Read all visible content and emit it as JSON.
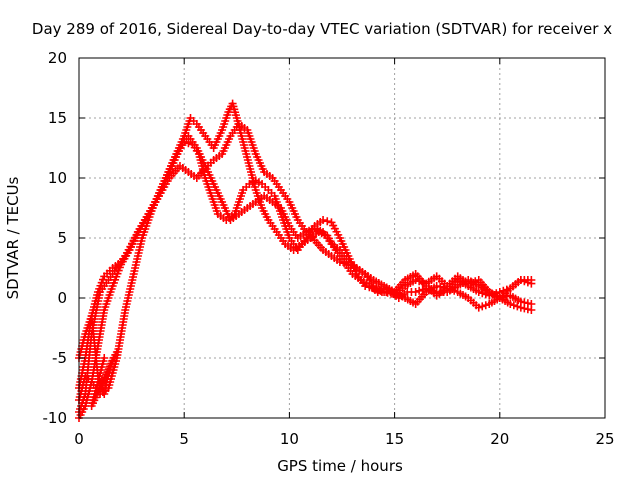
{
  "chart_data": {
    "type": "scatter",
    "title": "Day 289 of 2016, Sidereal Day-to-day VTEC variation (SDTVAR) for receiver x",
    "xlabel": "GPS time / hours",
    "ylabel": "SDTVAR / TECUs",
    "xlim": [
      0,
      25
    ],
    "ylim": [
      -10,
      20
    ],
    "xticks": [
      "0",
      "5",
      "10",
      "15",
      "20",
      "25"
    ],
    "yticks": [
      "-10",
      "-5",
      "0",
      "5",
      "10",
      "15",
      "20"
    ],
    "grid": true,
    "marker": "+",
    "series_color": "#ff0000",
    "series": [
      {
        "x": [
          0.0,
          0.3,
          0.6,
          1.0,
          1.4,
          1.8,
          2.2,
          2.6,
          3.0,
          3.5,
          4.0,
          4.5,
          5.0,
          5.4,
          5.7,
          6.0,
          6.3,
          6.6,
          7.0,
          7.4,
          7.8,
          8.1,
          8.4,
          8.7,
          9.0,
          9.3,
          9.6,
          10.0,
          10.4,
          10.8,
          11.2,
          11.6,
          12.0,
          12.4,
          12.8,
          13.2,
          13.6,
          14.0,
          14.5,
          15.0,
          15.5,
          16.0,
          16.5,
          17.0,
          17.5,
          18.0,
          18.5,
          19.0,
          19.5,
          20.0,
          20.5,
          21.0,
          21.5
        ],
        "y": [
          -9.5,
          -8.0,
          -3.0,
          0.5,
          1.5,
          2.5,
          3.5,
          4.8,
          6.0,
          7.5,
          9.5,
          11.5,
          13.0,
          12.8,
          12.0,
          10.0,
          8.5,
          7.0,
          6.5,
          7.0,
          9.0,
          9.5,
          9.8,
          9.5,
          9.0,
          8.5,
          7.0,
          5.0,
          4.0,
          5.0,
          6.0,
          6.5,
          6.3,
          5.0,
          3.5,
          2.0,
          1.0,
          0.8,
          0.5,
          0.3,
          1.0,
          1.5,
          1.2,
          1.8,
          1.0,
          1.8,
          1.2,
          1.5,
          0.5,
          0.0,
          0.8,
          1.5,
          1.2
        ]
      },
      {
        "x": [
          0.0,
          0.3,
          0.6,
          1.0,
          1.4,
          1.8,
          2.2,
          2.6,
          3.0,
          3.5,
          4.0,
          4.5,
          5.0,
          5.3,
          5.6,
          6.0,
          6.4,
          6.8,
          7.1,
          7.3,
          7.5,
          7.8,
          8.1,
          8.4,
          8.7,
          9.0,
          9.4,
          9.8,
          10.2,
          10.6,
          11.0,
          11.4,
          11.8,
          12.2,
          12.6,
          13.0,
          13.4,
          13.8,
          14.2,
          14.6,
          15.0,
          15.5,
          16.0,
          16.5,
          17.0,
          17.5,
          18.0,
          18.5,
          19.0,
          19.5,
          20.0,
          20.5,
          21.0,
          21.5
        ],
        "y": [
          -8.5,
          -6.5,
          -7.0,
          -8.0,
          -7.5,
          -5.0,
          -1.0,
          2.0,
          5.0,
          7.5,
          9.5,
          11.5,
          13.5,
          15.0,
          14.5,
          13.5,
          12.5,
          14.0,
          15.5,
          16.2,
          15.0,
          13.0,
          11.0,
          9.0,
          7.5,
          6.5,
          5.5,
          4.5,
          4.0,
          4.5,
          5.0,
          5.5,
          5.2,
          4.0,
          3.0,
          2.0,
          1.5,
          1.0,
          0.5,
          0.8,
          0.5,
          1.5,
          2.0,
          1.0,
          0.2,
          0.8,
          1.5,
          1.0,
          0.5,
          0.2,
          0.5,
          0.8,
          1.5,
          1.5
        ]
      },
      {
        "x": [
          0.0,
          0.3,
          0.6,
          0.9,
          1.2,
          1.6,
          2.0,
          2.4,
          2.8,
          3.3,
          3.8,
          4.3,
          4.8,
          5.2,
          5.6,
          6.0,
          6.4,
          6.8,
          7.2,
          7.6,
          8.0,
          8.4,
          8.8,
          9.2,
          9.6,
          10.0,
          10.4,
          10.8,
          11.2,
          11.6,
          12.0,
          12.4,
          12.8,
          13.2,
          13.6,
          14.0,
          14.4,
          14.8,
          15.2,
          15.6,
          16.0,
          16.5,
          17.0,
          17.5,
          18.0,
          18.5,
          19.0,
          19.5,
          20.0,
          20.5,
          21.0,
          21.5
        ],
        "y": [
          -7.5,
          -5.0,
          -1.5,
          0.5,
          1.8,
          2.5,
          3.0,
          4.0,
          5.5,
          7.0,
          8.5,
          10.0,
          11.0,
          10.5,
          10.0,
          10.8,
          11.5,
          12.0,
          13.5,
          14.5,
          14.0,
          12.0,
          10.5,
          10.0,
          9.0,
          8.0,
          6.5,
          5.5,
          4.8,
          4.0,
          3.5,
          3.0,
          2.8,
          2.5,
          2.0,
          1.0,
          0.5,
          0.5,
          0.0,
          0.5,
          0.5,
          0.8,
          0.5,
          0.5,
          1.0,
          1.5,
          1.0,
          0.5,
          0.0,
          -0.5,
          -0.8,
          -1.0
        ]
      },
      {
        "x": [
          0.0,
          0.3,
          0.6,
          0.9,
          1.2,
          1.6,
          2.0,
          2.4,
          2.8,
          3.3,
          3.8,
          4.3,
          4.8,
          5.2,
          5.6,
          6.0,
          6.4,
          6.8,
          7.2,
          7.6,
          8.0,
          8.4,
          8.8,
          9.2,
          9.6,
          10.0,
          10.4,
          10.8,
          11.2,
          11.6,
          12.0,
          12.4,
          12.8,
          13.2,
          13.6,
          14.0,
          14.5,
          15.0,
          15.5,
          16.0,
          16.5,
          17.0,
          17.5,
          18.0,
          18.5,
          19.0,
          19.5,
          20.0,
          20.5,
          21.0,
          21.5
        ],
        "y": [
          -10.0,
          -9.0,
          -7.0,
          -4.0,
          -1.0,
          1.0,
          2.8,
          4.0,
          5.5,
          7.0,
          8.5,
          10.5,
          12.5,
          13.5,
          12.5,
          11.0,
          9.5,
          8.0,
          6.5,
          7.0,
          7.5,
          8.0,
          8.5,
          8.0,
          7.5,
          6.0,
          5.0,
          5.5,
          5.8,
          5.5,
          4.5,
          4.0,
          3.0,
          2.5,
          2.0,
          1.5,
          1.0,
          0.5,
          0.0,
          -0.5,
          0.5,
          1.0,
          0.8,
          0.5,
          0.0,
          -0.8,
          -0.5,
          0.0,
          0.2,
          -0.3,
          -0.5
        ]
      },
      {
        "x": [
          0.0,
          0.3,
          0.6,
          0.9,
          1.2,
          1.5,
          1.8,
          0.6,
          0.9,
          1.2
        ],
        "y": [
          -5.0,
          -3.0,
          -1.5,
          -6.5,
          -8.0,
          -5.5,
          -4.5,
          -9.0,
          -7.0,
          -5.0
        ]
      }
    ]
  }
}
